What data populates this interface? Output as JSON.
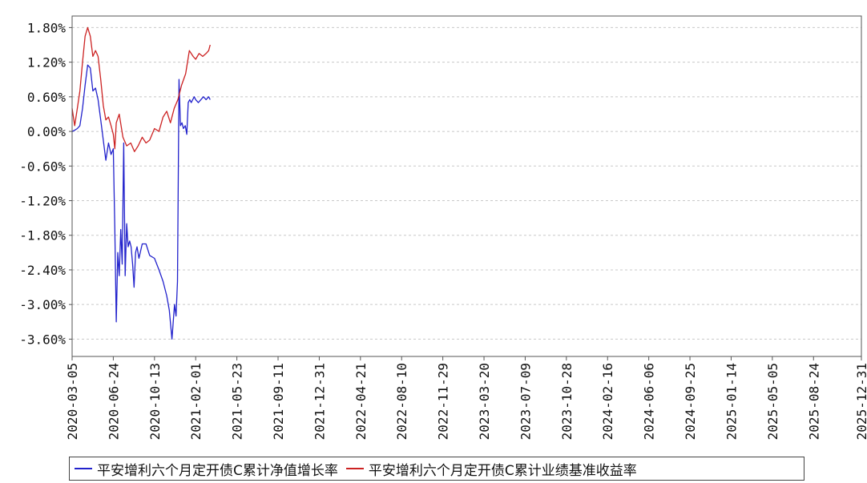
{
  "chart_data": {
    "type": "line",
    "title": "",
    "xlabel": "",
    "ylabel": "",
    "ylim": [
      -3.9,
      2.0
    ],
    "grid": true,
    "legend_position": "bottom",
    "y_ticks": [
      "1.80%",
      "1.20%",
      "0.60%",
      "0.00%",
      "-0.60%",
      "-1.20%",
      "-1.80%",
      "-2.40%",
      "-3.00%",
      "-3.60%"
    ],
    "y_tick_values": [
      1.8,
      1.2,
      0.6,
      0.0,
      -0.6,
      -1.2,
      -1.8,
      -2.4,
      -3.0,
      -3.6
    ],
    "x_ticks": [
      "2020-03-05",
      "2020-06-24",
      "2020-10-13",
      "2021-02-01",
      "2021-05-23",
      "2021-09-11",
      "2021-12-31",
      "2022-04-21",
      "2022-08-10",
      "2022-11-29",
      "2023-03-20",
      "2023-07-09",
      "2023-10-28",
      "2024-02-16",
      "2024-06-06",
      "2024-09-25",
      "2025-01-14",
      "2025-05-05",
      "2025-08-24",
      "2025-12-31"
    ],
    "series": [
      {
        "name": "平安增利六个月定开债C累计净值增长率",
        "color": "#2222cc",
        "x": [
          "2020-03-05",
          "2020-03-12",
          "2020-03-19",
          "2020-03-26",
          "2020-04-02",
          "2020-04-09",
          "2020-04-16",
          "2020-04-23",
          "2020-04-30",
          "2020-05-07",
          "2020-05-14",
          "2020-05-21",
          "2020-05-28",
          "2020-06-04",
          "2020-06-11",
          "2020-06-18",
          "2020-06-24",
          "2020-06-28",
          "2020-07-02",
          "2020-07-06",
          "2020-07-10",
          "2020-07-14",
          "2020-07-18",
          "2020-07-22",
          "2020-07-26",
          "2020-07-30",
          "2020-08-03",
          "2020-08-07",
          "2020-08-11",
          "2020-08-15",
          "2020-08-19",
          "2020-08-23",
          "2020-08-27",
          "2020-09-01",
          "2020-09-10",
          "2020-09-20",
          "2020-09-30",
          "2020-10-13",
          "2020-10-25",
          "2020-11-05",
          "2020-11-15",
          "2020-11-22",
          "2020-11-29",
          "2020-12-06",
          "2020-12-10",
          "2020-12-14",
          "2020-12-18",
          "2020-12-22",
          "2020-12-26",
          "2020-12-30",
          "2021-01-04",
          "2021-01-08",
          "2021-01-12",
          "2021-01-16",
          "2021-01-20",
          "2021-01-24",
          "2021-01-28",
          "2021-02-01",
          "2021-02-08",
          "2021-02-15",
          "2021-02-22",
          "2021-03-01",
          "2021-03-08",
          "2021-03-12"
        ],
        "values": [
          0.0,
          0.02,
          0.05,
          0.1,
          0.4,
          0.8,
          1.15,
          1.1,
          0.7,
          0.75,
          0.55,
          0.2,
          -0.15,
          -0.5,
          -0.2,
          -0.4,
          -0.3,
          -1.7,
          -3.3,
          -2.1,
          -2.5,
          -1.7,
          -2.3,
          -0.2,
          -2.5,
          -1.6,
          -2.0,
          -1.9,
          -2.0,
          -2.3,
          -2.7,
          -2.1,
          -2.0,
          -2.2,
          -1.95,
          -1.95,
          -2.15,
          -2.2,
          -2.4,
          -2.6,
          -2.85,
          -3.1,
          -3.6,
          -3.0,
          -3.2,
          -2.6,
          0.9,
          0.1,
          0.15,
          0.05,
          0.1,
          -0.05,
          0.5,
          0.55,
          0.5,
          0.55,
          0.6,
          0.55,
          0.5,
          0.55,
          0.6,
          0.55,
          0.6,
          0.55
        ]
      },
      {
        "name": "平安增利六个月定开债C累计业绩基准收益率",
        "color": "#cc2222",
        "x": [
          "2020-03-05",
          "2020-03-12",
          "2020-03-19",
          "2020-03-26",
          "2020-04-02",
          "2020-04-09",
          "2020-04-16",
          "2020-04-23",
          "2020-04-30",
          "2020-05-07",
          "2020-05-14",
          "2020-05-21",
          "2020-05-28",
          "2020-06-04",
          "2020-06-11",
          "2020-06-18",
          "2020-06-24",
          "2020-06-28",
          "2020-07-02",
          "2020-07-10",
          "2020-07-20",
          "2020-07-30",
          "2020-08-10",
          "2020-08-20",
          "2020-08-30",
          "2020-09-10",
          "2020-09-20",
          "2020-09-30",
          "2020-10-13",
          "2020-10-25",
          "2020-11-05",
          "2020-11-15",
          "2020-11-25",
          "2020-12-05",
          "2020-12-15",
          "2020-12-25",
          "2021-01-05",
          "2021-01-15",
          "2021-01-25",
          "2021-02-01",
          "2021-02-10",
          "2021-02-20",
          "2021-03-01",
          "2021-03-08",
          "2021-03-12"
        ],
        "values": [
          0.4,
          0.1,
          0.4,
          0.7,
          1.2,
          1.65,
          1.8,
          1.65,
          1.3,
          1.4,
          1.3,
          0.9,
          0.45,
          0.2,
          0.25,
          0.1,
          -0.05,
          -0.3,
          0.15,
          0.3,
          -0.1,
          -0.25,
          -0.2,
          -0.35,
          -0.25,
          -0.1,
          -0.2,
          -0.15,
          0.05,
          0.0,
          0.25,
          0.35,
          0.15,
          0.4,
          0.55,
          0.8,
          1.0,
          1.4,
          1.3,
          1.25,
          1.35,
          1.3,
          1.35,
          1.4,
          1.5
        ]
      }
    ]
  },
  "legend": {
    "items": [
      {
        "label": "平安增利六个月定开债C累计净值增长率",
        "color": "#2222cc"
      },
      {
        "label": "平安增利六个月定开债C累计业绩基准收益率",
        "color": "#cc2222"
      }
    ]
  }
}
